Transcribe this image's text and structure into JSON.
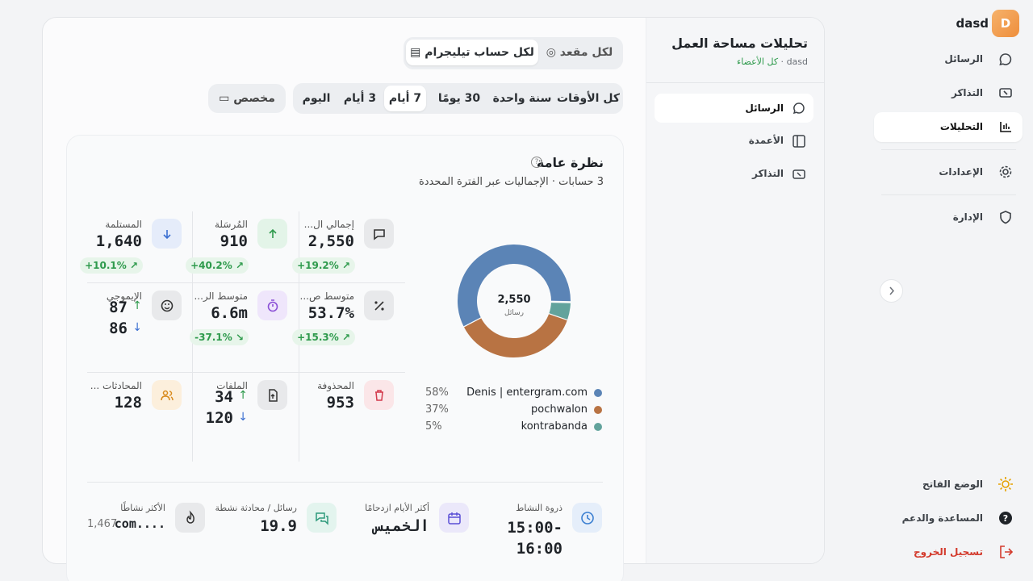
{
  "sidebar": {
    "brand": "dasd",
    "avatar": "D",
    "nav": [
      "الرسائل",
      "التذاكر",
      "التحليلات",
      "الإعدادات",
      "الإدارة"
    ],
    "bottom": [
      "الوضع الفاتح",
      "المساعدة والدعم",
      "تسجيل الخروج"
    ]
  },
  "panel": {
    "title": "تحليلات مساحة العمل",
    "workspace": "dasd",
    "members": "كل الأعضاء",
    "nav": [
      "الرسائل",
      "الأعمدة",
      "التذاكر"
    ]
  },
  "scope_tabs": [
    "لكل مقعد",
    "لكل حساب تيليجرام"
  ],
  "range_tabs": [
    "كل الأوقات",
    "سنة واحدة",
    "30 يومًا",
    "7 أيام",
    "3 أيام",
    "اليوم"
  ],
  "custom": "مخصص",
  "overview": {
    "title": "نظرة عامة",
    "subtitle": "3 حسابات · الإجماليات عبر الفترة المحددة"
  },
  "chart_data": {
    "type": "donut",
    "center_value": "2,550",
    "center_label": "رسائل",
    "categories": [
      "Denis | entergram.com",
      "pochwalon",
      "kontrabanda"
    ],
    "values": [
      58,
      37,
      5
    ],
    "value_labels": [
      "58%",
      "37%",
      "5%"
    ],
    "colors": [
      "#5b84b6",
      "#b87343",
      "#62a39c"
    ]
  },
  "stats": [
    {
      "label": "إجمالي ال...",
      "value": "2,550",
      "change": "+19.2%"
    },
    {
      "label": "المُرسَلة",
      "value": "910",
      "change": "+40.2%"
    },
    {
      "label": "المستلمة",
      "value": "1,640",
      "change": "+10.1%"
    },
    {
      "label": "متوسط ص...",
      "value": "53.7%",
      "change": "+15.3%"
    },
    {
      "label": "متوسط الر...",
      "value": "6.6m",
      "change": "-37.1%"
    },
    {
      "label": "الإيموجي",
      "in": "87",
      "out": "86"
    },
    {
      "label": "المحذوفة",
      "value": "953"
    },
    {
      "label": "الملفات",
      "in": "34",
      "out": "120"
    },
    {
      "label": "المحادثات ...",
      "value": "128"
    }
  ],
  "highlights": [
    {
      "label": "ذروة النشاط",
      "value": "15:00-16:00"
    },
    {
      "label": "أكثر الأيام ازدحامًا",
      "value": "الخميس"
    },
    {
      "label": "رسائل / محادثة نشطة",
      "value": "19.9"
    },
    {
      "label": "الأكثر نشاطًا",
      "value": "com....",
      "extra": "1,467"
    }
  ]
}
